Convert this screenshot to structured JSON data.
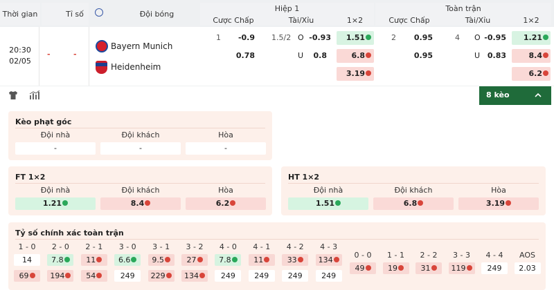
{
  "header": {
    "time": "Thời gian",
    "score": "Tỉ số",
    "team": "Đội bóng",
    "half1": "Hiệp 1",
    "fulltime": "Toàn trận",
    "handicap": "Cược Chấp",
    "overunder": "Tài/Xỉu",
    "onextwo": "1×2"
  },
  "match": {
    "time": "20:30",
    "date": "02/05",
    "score_home": "-",
    "score_away": "-",
    "home": "Bayern Munich",
    "away": "Heidenheim"
  },
  "half1": {
    "hcp_line": "1",
    "hcp_home": "-0.9",
    "hcp_away": "0.78",
    "ou_line": "1.5/2",
    "ou_o": "O",
    "ou_over": "-0.93",
    "ou_u": "U",
    "ou_under": "0.8",
    "x_home": "1.51",
    "x_away": "6.8",
    "x_draw": "3.19"
  },
  "full": {
    "hcp_line": "2",
    "hcp_home": "0.95",
    "hcp_away": "0.95",
    "ou_line": "4",
    "ou_o": "O",
    "ou_over": "-0.95",
    "ou_u": "U",
    "ou_under": "0.83",
    "x_home": "1.21",
    "x_away": "8.4",
    "x_draw": "6.2"
  },
  "toolbar": {
    "more_label": "8 kèo"
  },
  "corner": {
    "title": "Kèo phạt góc",
    "labels": [
      "Đội nhà",
      "Đội khách",
      "Hòa"
    ],
    "values": [
      "-",
      "-",
      "-"
    ]
  },
  "ft": {
    "title": "FT 1×2",
    "labels": [
      "Đội nhà",
      "Đội khách",
      "Hòa"
    ],
    "values": [
      "1.21",
      "8.4",
      "6.2"
    ]
  },
  "ht": {
    "title": "HT 1×2",
    "labels": [
      "Đội nhà",
      "Đội khách",
      "Hòa"
    ],
    "values": [
      "1.51",
      "6.8",
      "3.19"
    ]
  },
  "correct_score": {
    "title": "Tỷ số chính xác toàn trận",
    "home_wins": [
      {
        "score": "1 - 0",
        "home": "14",
        "away": "69"
      },
      {
        "score": "2 - 0",
        "home": "7.8",
        "away": "194"
      },
      {
        "score": "2 - 1",
        "home": "11",
        "away": "54"
      },
      {
        "score": "3 - 0",
        "home": "6.6",
        "away": "249"
      },
      {
        "score": "3 - 1",
        "home": "9.5",
        "away": "229"
      },
      {
        "score": "3 - 2",
        "home": "27",
        "away": "134"
      },
      {
        "score": "4 - 0",
        "home": "7.8",
        "away": "249"
      },
      {
        "score": "4 - 1",
        "home": "11",
        "away": "249"
      },
      {
        "score": "4 - 2",
        "home": "33",
        "away": "249"
      },
      {
        "score": "4 - 3",
        "home": "134",
        "away": "249"
      }
    ],
    "draws": [
      {
        "score": "0 - 0",
        "value": "49"
      },
      {
        "score": "1 - 1",
        "value": "19"
      },
      {
        "score": "2 - 2",
        "value": "31"
      },
      {
        "score": "3 - 3",
        "value": "119"
      },
      {
        "score": "4 - 4",
        "value": "249"
      },
      {
        "score": "AOS",
        "value": "2.03"
      }
    ]
  },
  "colors": {
    "accent": "#1f6b3a",
    "up": "#2aa85a",
    "down": "#d8453a"
  }
}
